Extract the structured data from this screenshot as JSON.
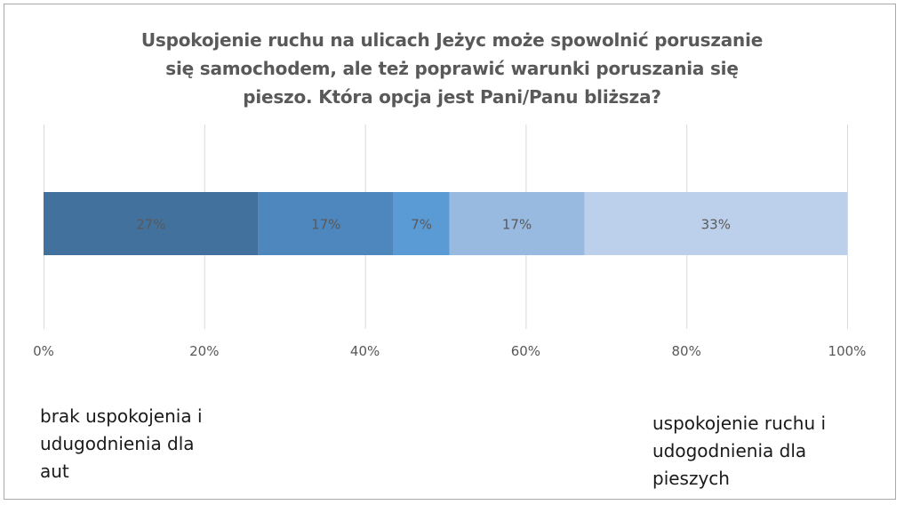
{
  "chart_data": {
    "type": "bar",
    "orientation": "horizontal",
    "stacked": true,
    "percent_stacked": true,
    "title_lines": [
      "Uspokojenie ruchu na ulicach Jeżyc może spowolnić poruszanie",
      "się samochodem, ale też poprawić warunki  poruszania się",
      "pieszo. Która opcja  jest Pani/Panu bliższa?"
    ],
    "xlim": [
      0,
      100
    ],
    "x_ticks": [
      0,
      20,
      40,
      60,
      80,
      100
    ],
    "x_tick_labels": [
      "0%",
      "20%",
      "40%",
      "60%",
      "80%",
      "100%"
    ],
    "grid": true,
    "legend": "none",
    "series": [
      {
        "value": 27,
        "label": "27%",
        "color": "#41719c"
      },
      {
        "value": 17,
        "label": "17%",
        "color": "#4e87be"
      },
      {
        "value": 7,
        "label": "7%",
        "color": "#5b9bd5"
      },
      {
        "value": 17,
        "label": "17%",
        "color": "#98b9e0"
      },
      {
        "value": 33,
        "label": "33%",
        "color": "#bdd0eb"
      }
    ],
    "category_labels": {
      "left": [
        "brak uspokojenia i",
        "udugodnienia dla",
        "aut"
      ],
      "right": [
        "uspokojenie ruchu i",
        "udogodnienia dla",
        "pieszych"
      ]
    },
    "colors": {
      "text": "#595959",
      "grid": "#d9d9d9",
      "frame": "#a9a9a9"
    }
  }
}
